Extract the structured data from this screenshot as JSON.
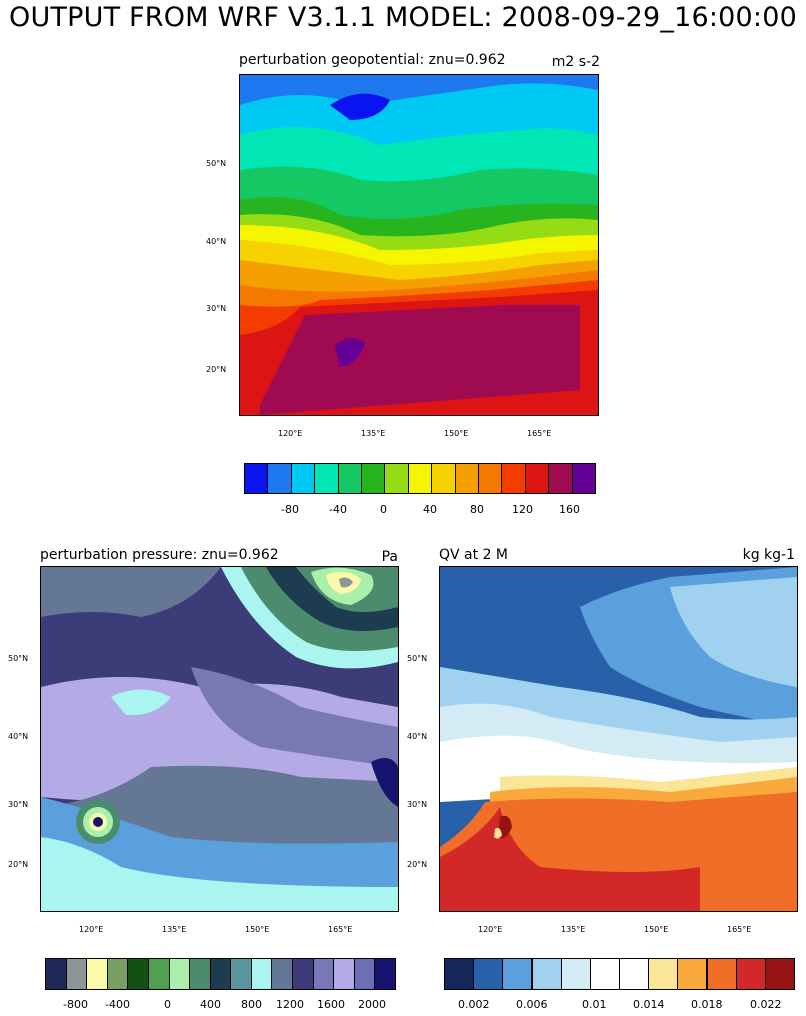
{
  "main_title": "OUTPUT FROM WRF V3.1.1 MODEL: 2008-09-29_16:00:00",
  "panels": [
    {
      "id": "geopotential",
      "title": "perturbation geopotential: znu=0.962",
      "units": "m2 s-2",
      "lat_labels": [
        "50°N",
        "40°N",
        "30°N",
        "20°N"
      ],
      "lon_labels": [
        "120°E",
        "135°E",
        "150°E",
        "165°E"
      ],
      "colorbar": {
        "colors": [
          "#0a14f0",
          "#1e78f0",
          "#00c8f5",
          "#00e6b4",
          "#14c864",
          "#28b41e",
          "#96dc14",
          "#f5f500",
          "#f5d200",
          "#f5a000",
          "#f57800",
          "#f53c00",
          "#dc1414",
          "#a00a50",
          "#640096"
        ],
        "labels": [
          "-80",
          "-40",
          "0",
          "40",
          "80",
          "120",
          "160"
        ]
      }
    },
    {
      "id": "pressure",
      "title": "perturbation pressure: znu=0.962",
      "units": "Pa",
      "lat_labels": [
        "50°N",
        "40°N",
        "30°N",
        "20°N"
      ],
      "lon_labels": [
        "120°E",
        "135°E",
        "150°E",
        "165°E"
      ],
      "colorbar": {
        "colors": [
          "#1e285a",
          "#8c9696",
          "#fafaaa",
          "#78a064",
          "#145014",
          "#50a050",
          "#aaf0aa",
          "#4b8c6e",
          "#1e3c50",
          "#5a96a0",
          "#aaf5f0",
          "#647896",
          "#3c3c78",
          "#7878b4",
          "#b4aae6",
          "#6e6eb4",
          "#14146e"
        ],
        "labels": [
          "-800",
          "-400",
          "0",
          "400",
          "800",
          "1200",
          "1600",
          "2000"
        ]
      }
    },
    {
      "id": "qv2m",
      "title": "QV at 2 M",
      "units": "kg kg-1",
      "lat_labels": [
        "50°N",
        "40°N",
        "30°N",
        "20°N"
      ],
      "lon_labels": [
        "120°E",
        "135°E",
        "150°E",
        "165°E"
      ],
      "colorbar": {
        "colors": [
          "#14285a",
          "#2860aa",
          "#5aa0dc",
          "#a0d2f0",
          "#d2ebf5",
          "#ffffff",
          "#ffffff",
          "#fae696",
          "#faaa3c",
          "#f06e28",
          "#d22828",
          "#961414"
        ],
        "labels": [
          "0.002",
          "0.006",
          "0.01",
          "0.014",
          "0.018",
          "0.022"
        ]
      }
    }
  ]
}
